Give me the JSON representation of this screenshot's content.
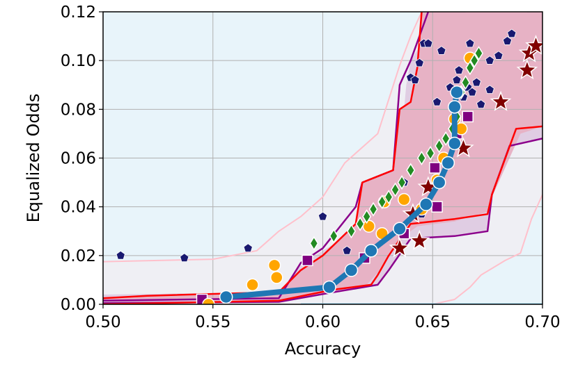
{
  "chart_data": {
    "type": "scatter",
    "xlabel": "Accuracy",
    "ylabel": "Equalized Odds",
    "xlim": [
      0.5,
      0.7
    ],
    "ylim": [
      0.0,
      0.12
    ],
    "xticks": [
      "0.50",
      "0.55",
      "0.60",
      "0.65",
      "0.70"
    ],
    "yticks": [
      "0.00",
      "0.02",
      "0.04",
      "0.06",
      "0.08",
      "0.10",
      "0.12"
    ],
    "grid": true,
    "colors": {
      "outer_region": "#e8f4fa",
      "mid_region": "#efeff4",
      "inner_region": "#e7b2c5",
      "outer_boundary": "#ffc0cb",
      "purple_boundary": "#8b008b",
      "red_boundary": "#ff0000",
      "baseline": "#87ceeb",
      "front_line": "#1f77b4",
      "pentagon": "#191970",
      "square": "#800080",
      "circle": "#ffa500",
      "diamond": "#228b22",
      "star": "#800000"
    },
    "regions": {
      "outer": [
        [
          0.5,
          0.0175
        ],
        [
          0.55,
          0.0185
        ],
        [
          0.57,
          0.022
        ],
        [
          0.58,
          0.03
        ],
        [
          0.59,
          0.036
        ],
        [
          0.6,
          0.044
        ],
        [
          0.61,
          0.058
        ],
        [
          0.625,
          0.07
        ],
        [
          0.635,
          0.098
        ],
        [
          0.64,
          0.11
        ],
        [
          0.645,
          0.12
        ],
        [
          0.7,
          0.12
        ],
        [
          0.7,
          0.12
        ],
        [
          0.688,
          0.12
        ],
        [
          0.69,
          0.12
        ],
        [
          0.7,
          0.0
        ],
        [
          0.5,
          0.0
        ]
      ],
      "mid_upper": [
        [
          0.5,
          0.004
        ],
        [
          0.58,
          0.005
        ],
        [
          0.59,
          0.016
        ],
        [
          0.6,
          0.022
        ],
        [
          0.615,
          0.03
        ],
        [
          0.618,
          0.05
        ],
        [
          0.628,
          0.053
        ],
        [
          0.632,
          0.055
        ],
        [
          0.635,
          0.06
        ],
        [
          0.638,
          0.09
        ],
        [
          0.64,
          0.1
        ],
        [
          0.647,
          0.11
        ],
        [
          0.648,
          0.12
        ]
      ],
      "mid_lower": [
        [
          0.66,
          0.0
        ],
        [
          0.665,
          0.002
        ],
        [
          0.668,
          0.016
        ],
        [
          0.682,
          0.024
        ],
        [
          0.69,
          0.035
        ],
        [
          0.7,
          0.038
        ]
      ],
      "inner_upper": [
        [
          0.5,
          0.003
        ],
        [
          0.58,
          0.004
        ],
        [
          0.59,
          0.014
        ],
        [
          0.6,
          0.02
        ],
        [
          0.615,
          0.033
        ],
        [
          0.618,
          0.05
        ],
        [
          0.632,
          0.055
        ],
        [
          0.635,
          0.08
        ],
        [
          0.64,
          0.083
        ],
        [
          0.643,
          0.097
        ],
        [
          0.645,
          0.12
        ]
      ],
      "inner_lower": [
        [
          0.5,
          0.001
        ],
        [
          0.58,
          0.002
        ],
        [
          0.605,
          0.006
        ],
        [
          0.62,
          0.008
        ],
        [
          0.625,
          0.013
        ],
        [
          0.63,
          0.021
        ],
        [
          0.64,
          0.03
        ],
        [
          0.643,
          0.032
        ],
        [
          0.66,
          0.034
        ],
        [
          0.675,
          0.038
        ],
        [
          0.677,
          0.044
        ],
        [
          0.68,
          0.05
        ],
        [
          0.69,
          0.07
        ],
        [
          0.7,
          0.073
        ]
      ]
    },
    "boundaries": [
      {
        "color": "outer_boundary",
        "points": [
          [
            0.5,
            0.0175
          ],
          [
            0.55,
            0.0185
          ],
          [
            0.57,
            0.022
          ],
          [
            0.58,
            0.03
          ],
          [
            0.59,
            0.036
          ],
          [
            0.6,
            0.044
          ],
          [
            0.61,
            0.058
          ],
          [
            0.625,
            0.07
          ],
          [
            0.635,
            0.098
          ],
          [
            0.64,
            0.11
          ],
          [
            0.645,
            0.12
          ]
        ]
      },
      {
        "color": "outer_boundary",
        "points": [
          [
            0.65,
            0.0
          ],
          [
            0.66,
            0.002
          ],
          [
            0.667,
            0.007
          ],
          [
            0.672,
            0.012
          ],
          [
            0.683,
            0.018
          ],
          [
            0.69,
            0.021
          ],
          [
            0.695,
            0.035
          ],
          [
            0.7,
            0.045
          ]
        ]
      },
      {
        "color": "outer_boundary",
        "points": [
          [
            0.665,
            0.12
          ],
          [
            0.688,
            0.12
          ],
          [
            0.69,
            0.12
          ],
          [
            0.693,
            0.12
          ]
        ]
      },
      {
        "color": "purple_boundary",
        "points": [
          [
            0.5,
            0.0015
          ],
          [
            0.58,
            0.0025
          ],
          [
            0.59,
            0.017
          ],
          [
            0.6,
            0.023
          ],
          [
            0.615,
            0.04
          ],
          [
            0.618,
            0.05
          ],
          [
            0.632,
            0.055
          ],
          [
            0.635,
            0.09
          ],
          [
            0.64,
            0.1
          ],
          [
            0.648,
            0.12
          ]
        ]
      },
      {
        "color": "purple_boundary",
        "points": [
          [
            0.5,
            0.0005
          ],
          [
            0.58,
            0.001
          ],
          [
            0.605,
            0.005
          ],
          [
            0.625,
            0.008
          ],
          [
            0.63,
            0.014
          ],
          [
            0.64,
            0.027
          ],
          [
            0.66,
            0.028
          ],
          [
            0.675,
            0.03
          ],
          [
            0.677,
            0.045
          ],
          [
            0.685,
            0.065
          ],
          [
            0.7,
            0.068
          ]
        ]
      },
      {
        "color": "red_boundary",
        "points": [
          [
            0.5,
            0.0025
          ],
          [
            0.52,
            0.0035
          ],
          [
            0.58,
            0.005
          ],
          [
            0.59,
            0.014
          ],
          [
            0.6,
            0.02
          ],
          [
            0.615,
            0.033
          ],
          [
            0.618,
            0.05
          ],
          [
            0.632,
            0.055
          ],
          [
            0.635,
            0.08
          ],
          [
            0.64,
            0.083
          ],
          [
            0.643,
            0.097
          ],
          [
            0.645,
            0.12
          ]
        ]
      },
      {
        "color": "red_boundary",
        "points": [
          [
            0.5,
            0.0
          ],
          [
            0.58,
            0.0015
          ],
          [
            0.605,
            0.006
          ],
          [
            0.622,
            0.008
          ],
          [
            0.625,
            0.012
          ],
          [
            0.63,
            0.02
          ],
          [
            0.64,
            0.033
          ],
          [
            0.66,
            0.035
          ],
          [
            0.675,
            0.037
          ],
          [
            0.677,
            0.045
          ],
          [
            0.688,
            0.072
          ],
          [
            0.7,
            0.073
          ]
        ]
      },
      {
        "color": "baseline",
        "points": [
          [
            0.59,
            0.0
          ],
          [
            0.7,
            0.0
          ]
        ]
      }
    ],
    "series": [
      {
        "marker": "pentagon",
        "color": "pentagon",
        "points": [
          [
            0.508,
            0.02
          ],
          [
            0.537,
            0.019
          ],
          [
            0.566,
            0.023
          ],
          [
            0.6,
            0.036
          ],
          [
            0.611,
            0.022
          ],
          [
            0.637,
            0.05
          ],
          [
            0.64,
            0.093
          ],
          [
            0.642,
            0.092
          ],
          [
            0.644,
            0.099
          ],
          [
            0.646,
            0.107
          ],
          [
            0.648,
            0.107
          ],
          [
            0.652,
            0.083
          ],
          [
            0.654,
            0.104
          ],
          [
            0.658,
            0.089
          ],
          [
            0.661,
            0.092
          ],
          [
            0.662,
            0.096
          ],
          [
            0.664,
            0.085
          ],
          [
            0.666,
            0.089
          ],
          [
            0.667,
            0.107
          ],
          [
            0.668,
            0.087
          ],
          [
            0.67,
            0.091
          ],
          [
            0.672,
            0.082
          ],
          [
            0.676,
            0.088
          ],
          [
            0.676,
            0.1
          ],
          [
            0.68,
            0.102
          ],
          [
            0.684,
            0.108
          ],
          [
            0.686,
            0.111
          ],
          [
            0.645,
            0.037
          ]
        ]
      },
      {
        "marker": "square",
        "color": "square",
        "points": [
          [
            0.545,
            0.002
          ],
          [
            0.593,
            0.018
          ],
          [
            0.619,
            0.019
          ],
          [
            0.637,
            0.029
          ],
          [
            0.651,
            0.056
          ],
          [
            0.652,
            0.04
          ],
          [
            0.661,
            0.07
          ],
          [
            0.666,
            0.077
          ]
        ]
      },
      {
        "marker": "circle",
        "color": "circle",
        "points": [
          [
            0.548,
            0.0
          ],
          [
            0.568,
            0.008
          ],
          [
            0.578,
            0.016
          ],
          [
            0.579,
            0.011
          ],
          [
            0.621,
            0.032
          ],
          [
            0.627,
            0.029
          ],
          [
            0.628,
            0.042
          ],
          [
            0.637,
            0.043
          ],
          [
            0.645,
            0.039
          ],
          [
            0.652,
            0.051
          ],
          [
            0.655,
            0.06
          ],
          [
            0.66,
            0.076
          ],
          [
            0.663,
            0.072
          ],
          [
            0.667,
            0.101
          ]
        ]
      },
      {
        "marker": "diamond",
        "color": "diamond",
        "points": [
          [
            0.596,
            0.025
          ],
          [
            0.605,
            0.028
          ],
          [
            0.613,
            0.03
          ],
          [
            0.617,
            0.033
          ],
          [
            0.62,
            0.036
          ],
          [
            0.623,
            0.039
          ],
          [
            0.627,
            0.042
          ],
          [
            0.63,
            0.044
          ],
          [
            0.633,
            0.047
          ],
          [
            0.636,
            0.05
          ],
          [
            0.64,
            0.055
          ],
          [
            0.645,
            0.06
          ],
          [
            0.649,
            0.062
          ],
          [
            0.653,
            0.065
          ],
          [
            0.656,
            0.068
          ],
          [
            0.659,
            0.072
          ],
          [
            0.661,
            0.077
          ],
          [
            0.663,
            0.087
          ],
          [
            0.665,
            0.091
          ],
          [
            0.667,
            0.097
          ],
          [
            0.669,
            0.1
          ],
          [
            0.671,
            0.103
          ]
        ]
      },
      {
        "marker": "star",
        "color": "star",
        "points": [
          [
            0.635,
            0.023
          ],
          [
            0.641,
            0.037
          ],
          [
            0.644,
            0.026
          ],
          [
            0.648,
            0.048
          ],
          [
            0.664,
            0.064
          ],
          [
            0.681,
            0.083
          ],
          [
            0.693,
            0.096
          ],
          [
            0.694,
            0.103
          ],
          [
            0.697,
            0.106
          ]
        ]
      },
      {
        "marker": "front",
        "color": "front_line",
        "points": [
          [
            0.556,
            0.003
          ],
          [
            0.603,
            0.007
          ],
          [
            0.613,
            0.014
          ],
          [
            0.622,
            0.022
          ],
          [
            0.635,
            0.031
          ],
          [
            0.647,
            0.041
          ],
          [
            0.653,
            0.05
          ],
          [
            0.657,
            0.058
          ],
          [
            0.66,
            0.066
          ],
          [
            0.66,
            0.081
          ],
          [
            0.661,
            0.087
          ]
        ]
      }
    ]
  }
}
